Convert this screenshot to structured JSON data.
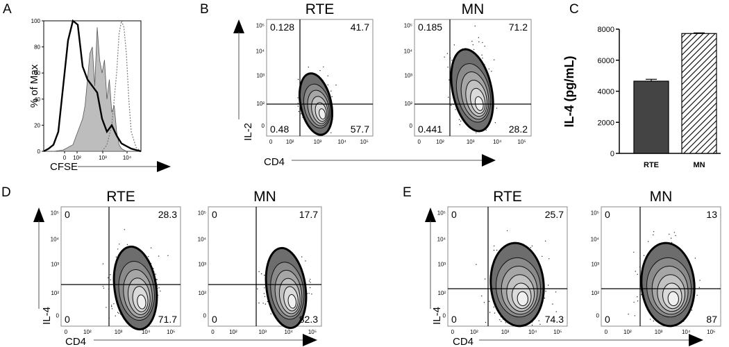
{
  "panel_letters": [
    "A",
    "B",
    "C",
    "D",
    "E"
  ],
  "chart_data": [
    {
      "panel": "A",
      "type": "line",
      "xlabel": "CFSE",
      "ylabel": "% of Max",
      "x_ticks": [
        "0",
        "10²",
        "10³",
        "10⁴"
      ],
      "y_ticks": [
        "0",
        "20",
        "40",
        "60",
        "80",
        "100"
      ],
      "ylim": [
        0,
        100
      ],
      "series": [
        {
          "style": "thick solid black",
          "x": [
            0,
            10,
            20,
            30,
            40,
            50,
            60,
            70,
            80,
            90,
            100,
            110,
            120,
            130,
            140,
            150,
            160,
            170,
            180,
            190,
            200
          ],
          "values": [
            0,
            2,
            5,
            15,
            50,
            85,
            100,
            97,
            65,
            55,
            50,
            45,
            25,
            15,
            20,
            12,
            6,
            4,
            2,
            1,
            0
          ]
        },
        {
          "style": "filled grey",
          "x": [
            0,
            20,
            40,
            60,
            80,
            85,
            90,
            95,
            100,
            105,
            110,
            115,
            120,
            125,
            130,
            135,
            140,
            145,
            150,
            155,
            160,
            165,
            170,
            180,
            190,
            200
          ],
          "values": [
            0,
            0,
            1,
            5,
            25,
            35,
            55,
            75,
            80,
            50,
            95,
            70,
            60,
            70,
            40,
            55,
            30,
            35,
            15,
            5,
            2,
            1,
            0,
            0,
            0,
            0
          ]
        },
        {
          "style": "dashed grey",
          "x": [
            0,
            100,
            120,
            130,
            140,
            150,
            155,
            160,
            165,
            170,
            175,
            180,
            190,
            200
          ],
          "values": [
            0,
            0,
            0,
            5,
            20,
            60,
            90,
            100,
            95,
            75,
            40,
            15,
            3,
            0
          ]
        }
      ]
    },
    {
      "panel": "B",
      "type": "scatter",
      "subtype": "flow-contour",
      "xlabel": "CD4",
      "ylabel": "IL-2",
      "x_ticks": [
        "0",
        "10²",
        "10³",
        "10⁴",
        "10⁵"
      ],
      "y_ticks": [
        "0",
        "10²",
        "10³",
        "10⁴",
        "10⁵"
      ],
      "plots": [
        {
          "title": "RTE",
          "quadrants": {
            "top_left": "0.128",
            "top_right": "41.7",
            "bottom_left": "0.48",
            "bottom_right": "57.7"
          }
        },
        {
          "title": "MN",
          "quadrants": {
            "top_left": "0.185",
            "top_right": "71.2",
            "bottom_left": "0.441",
            "bottom_right": "28.2"
          }
        }
      ]
    },
    {
      "panel": "C",
      "type": "bar",
      "categories": [
        "RTE",
        "MN"
      ],
      "values": [
        4650,
        7720
      ],
      "error": [
        120,
        40
      ],
      "ylabel": "IL-4 (pg/mL)",
      "ylim": [
        0,
        8000
      ],
      "y_ticks": [
        "0",
        "2000",
        "4000",
        "6000",
        "8000"
      ]
    },
    {
      "panel": "D",
      "type": "scatter",
      "subtype": "flow-contour",
      "xlabel": "CD4",
      "ylabel": "IL-4",
      "x_ticks": [
        "0",
        "10²",
        "10³",
        "10⁴",
        "10⁵"
      ],
      "y_ticks": [
        "0",
        "10²",
        "10³",
        "10⁴",
        "10⁵"
      ],
      "plots": [
        {
          "title": "RTE",
          "quadrants": {
            "top_left": "0",
            "top_right": "28.3",
            "bottom_left": "0",
            "bottom_right": "71.7"
          }
        },
        {
          "title": "MN",
          "quadrants": {
            "top_left": "0",
            "top_right": "17.7",
            "bottom_left": "0",
            "bottom_right": "82.3"
          }
        }
      ]
    },
    {
      "panel": "E",
      "type": "scatter",
      "subtype": "flow-contour",
      "xlabel": "CD4",
      "ylabel": "IL-4",
      "x_ticks": [
        "0",
        "10²",
        "10³",
        "10⁴",
        "10⁵"
      ],
      "y_ticks": [
        "0",
        "10²",
        "10³",
        "10⁴",
        "10⁵"
      ],
      "plots": [
        {
          "title": "RTE",
          "quadrants": {
            "top_left": "0",
            "top_right": "25.7",
            "bottom_left": "0",
            "bottom_right": "74.3"
          }
        },
        {
          "title": "MN",
          "quadrants": {
            "top_left": "0",
            "top_right": "13",
            "bottom_left": "0",
            "bottom_right": "87"
          }
        }
      ]
    }
  ]
}
